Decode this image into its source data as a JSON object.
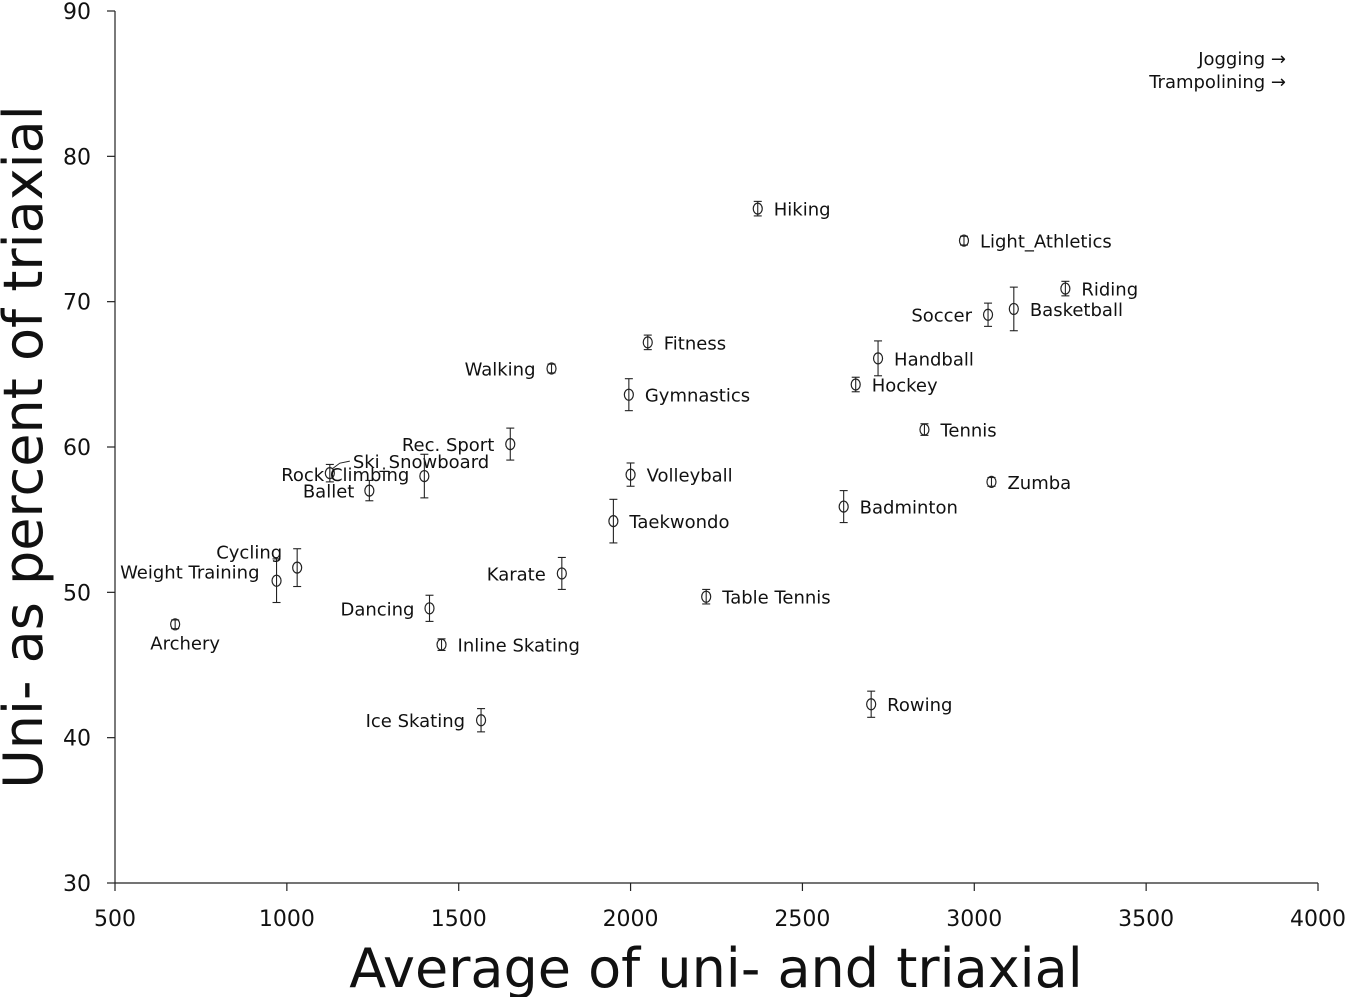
{
  "chart_data": {
    "type": "scatter",
    "xlabel": "Average of uni- and triaxial",
    "ylabel": "Uni- as percent of triaxial",
    "xlim": [
      500,
      4000
    ],
    "ylim": [
      30,
      90
    ],
    "xticks": [
      500,
      1000,
      1500,
      2000,
      2500,
      3000,
      3500,
      4000
    ],
    "yticks": [
      30,
      40,
      50,
      60,
      70,
      80,
      90
    ],
    "grid": false,
    "points": [
      {
        "label": "Archery",
        "x": 675,
        "y": 47.8,
        "err": 0.3
      },
      {
        "label": "Weight Training",
        "x": 970,
        "y": 50.8,
        "err": 1.5
      },
      {
        "label": "Cycling",
        "x": 1030,
        "y": 51.7,
        "err": 1.3
      },
      {
        "label": "Ski_Snowboard",
        "x": 1125,
        "y": 58.2,
        "err": 0.6
      },
      {
        "label": "Rock Climbing",
        "x": 1400,
        "y": 58.0,
        "err": 1.5
      },
      {
        "label": "Ballet",
        "x": 1240,
        "y": 57.0,
        "err": 0.7
      },
      {
        "label": "Dancing",
        "x": 1415,
        "y": 48.9,
        "err": 0.9
      },
      {
        "label": "Inline Skating",
        "x": 1450,
        "y": 46.4,
        "err": 0.4
      },
      {
        "label": "Ice Skating",
        "x": 1565,
        "y": 41.2,
        "err": 0.8
      },
      {
        "label": "Rec. Sport",
        "x": 1650,
        "y": 60.2,
        "err": 1.1
      },
      {
        "label": "Walking",
        "x": 1770,
        "y": 65.4,
        "err": 0.3
      },
      {
        "label": "Karate",
        "x": 1800,
        "y": 51.3,
        "err": 1.1
      },
      {
        "label": "Taekwondo",
        "x": 1950,
        "y": 54.9,
        "err": 1.5
      },
      {
        "label": "Gymnastics",
        "x": 1995,
        "y": 63.6,
        "err": 1.1
      },
      {
        "label": "Volleyball",
        "x": 2000,
        "y": 58.1,
        "err": 0.8
      },
      {
        "label": "Fitness",
        "x": 2050,
        "y": 67.2,
        "err": 0.5
      },
      {
        "label": "Table Tennis",
        "x": 2220,
        "y": 49.7,
        "err": 0.5
      },
      {
        "label": "Hiking",
        "x": 2370,
        "y": 76.4,
        "err": 0.5
      },
      {
        "label": "Badminton",
        "x": 2620,
        "y": 55.9,
        "err": 1.1
      },
      {
        "label": "Hockey",
        "x": 2655,
        "y": 64.3,
        "err": 0.5
      },
      {
        "label": "Rowing",
        "x": 2700,
        "y": 42.3,
        "err": 0.9
      },
      {
        "label": "Handball",
        "x": 2720,
        "y": 66.1,
        "err": 1.2
      },
      {
        "label": "Tennis",
        "x": 2855,
        "y": 61.2,
        "err": 0.4
      },
      {
        "label": "Light_Athletics",
        "x": 2970,
        "y": 74.2,
        "err": 0.3
      },
      {
        "label": "Soccer",
        "x": 3040,
        "y": 69.1,
        "err": 0.8
      },
      {
        "label": "Zumba",
        "x": 3050,
        "y": 57.6,
        "err": 0.3
      },
      {
        "label": "Basketball",
        "x": 3115,
        "y": 69.5,
        "err": 1.5
      },
      {
        "label": "Riding",
        "x": 3265,
        "y": 70.9,
        "err": 0.5
      }
    ],
    "offscale_labels": [
      "Jogging →",
      "Trampolining →"
    ]
  }
}
